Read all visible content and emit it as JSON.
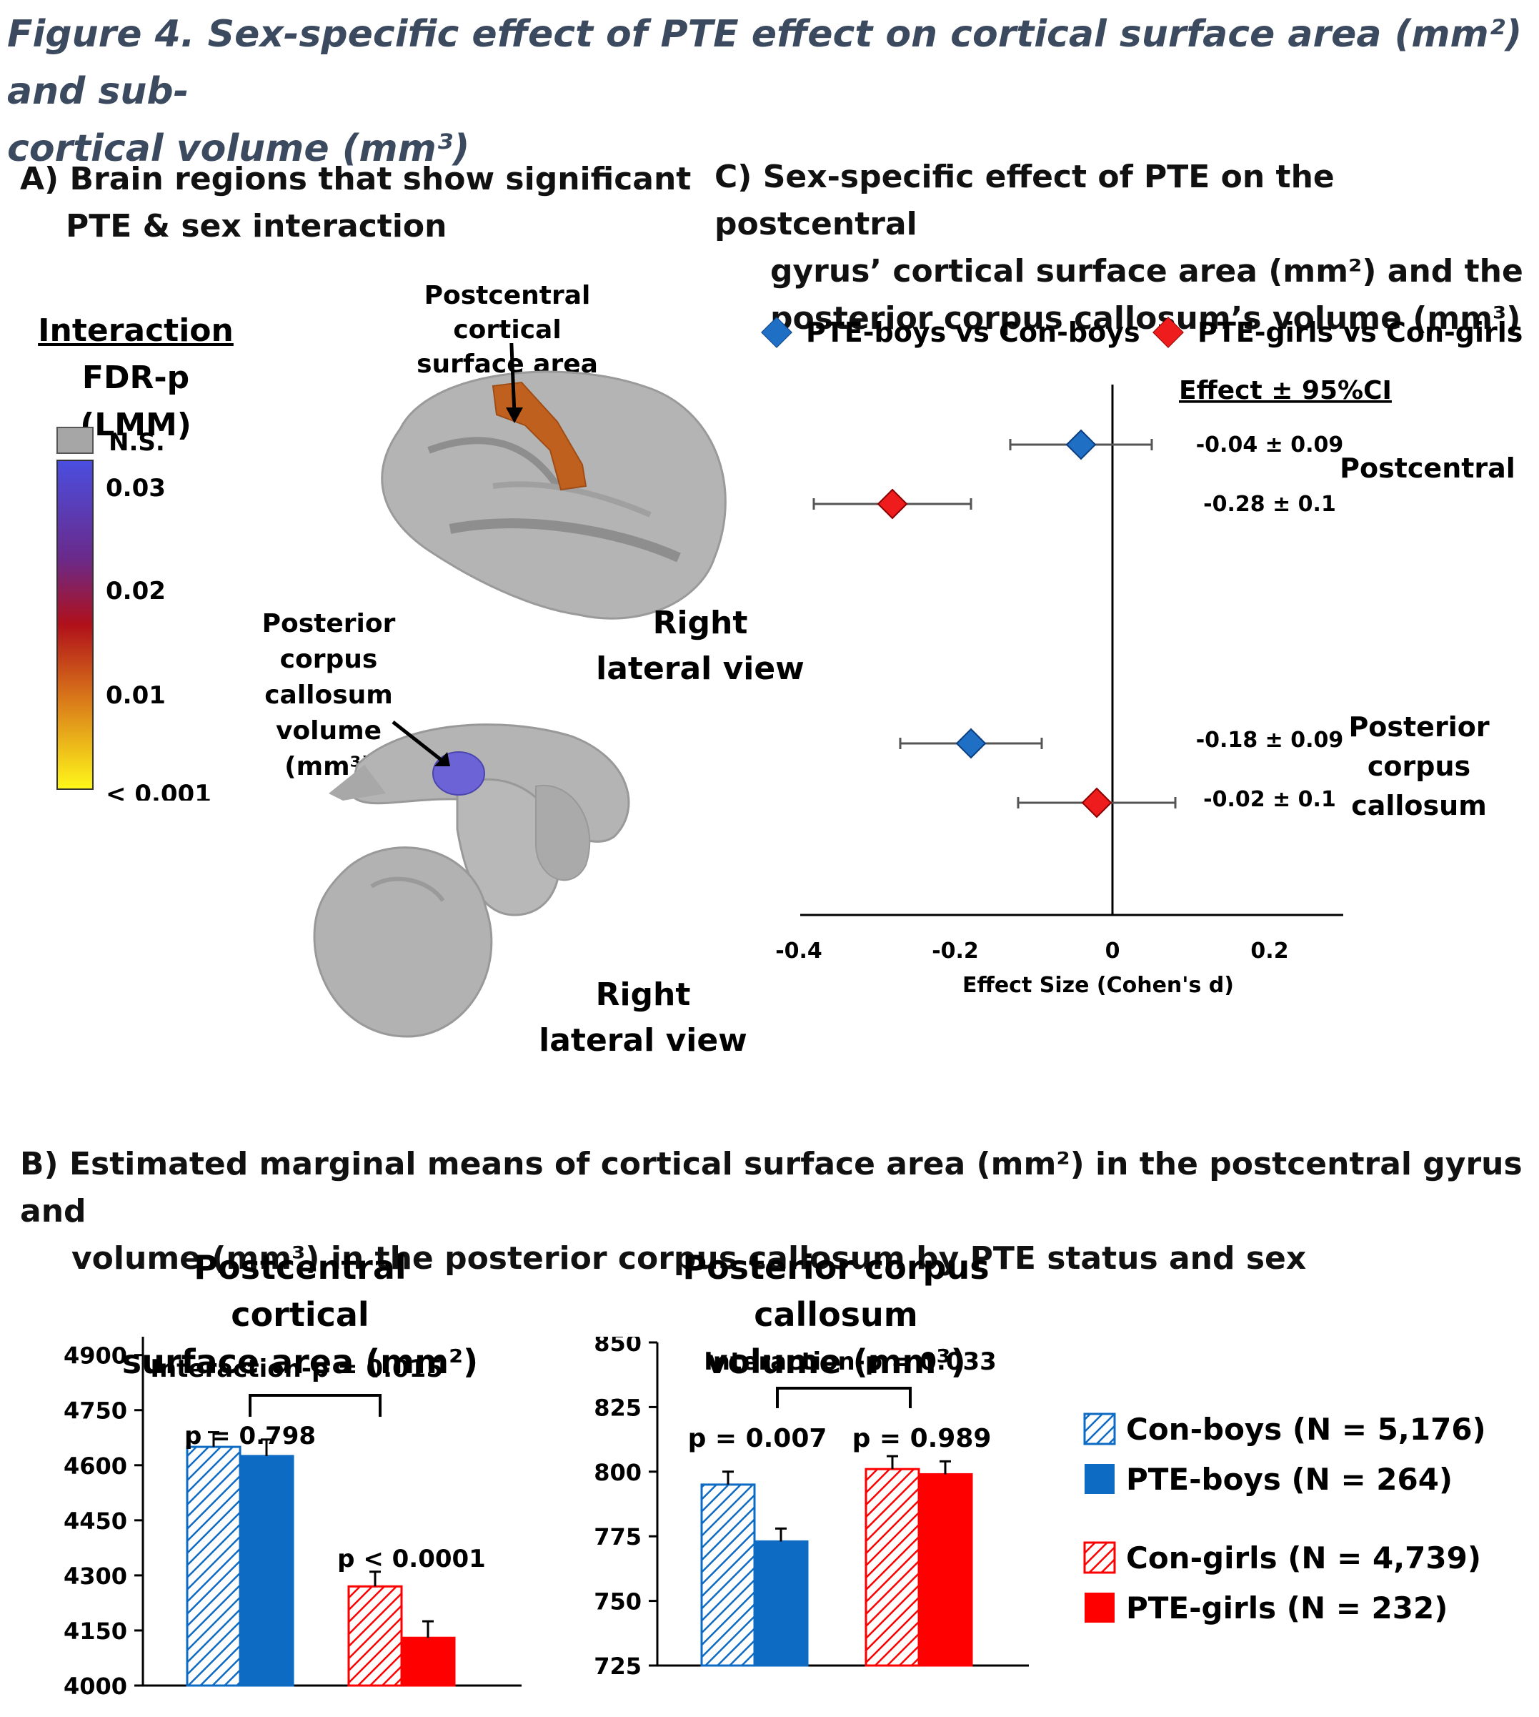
{
  "figure": {
    "title_line1": "Figure 4. Sex-specific effect of PTE effect on cortical surface area (mm²) and sub-",
    "title_line2": "cortical volume (mm³)"
  },
  "panelA": {
    "title_line1": "A) Brain regions that show significant",
    "title_line2": "PTE & sex interaction",
    "colorbar": {
      "title_line1": "Interaction",
      "title_line2": "FDR-p (LMM)",
      "ns_label": "N.S.",
      "ticks": [
        "0.03",
        "0.02",
        "0.01",
        "< 0.001"
      ]
    },
    "cortex_label_line1": "Postcentral  cortical",
    "cortex_label_line2": "surface area (mm²)",
    "callosum_label_line1": "Posterior",
    "callosum_label_line2": "corpus callosum",
    "callosum_label_line3": "volume",
    "callosum_label_line4": "(mm³)",
    "view1_line1": "Right",
    "view1_line2": "lateral view",
    "view2_line1": "Right",
    "view2_line2": "lateral view",
    "colors": {
      "ns": "#a6a6a6",
      "cortex_region": "#c0601e",
      "callosum_region": "#6b63d6",
      "brain": "#b4b4b4"
    }
  },
  "panelC": {
    "title_line1": "C) Sex-specific effect of PTE on the postcentral",
    "title_line2": "gyrus’ cortical surface area (mm²) and the",
    "title_line3": "posterior corpus callosum’s volume (mm³)",
    "legend_boys": "PTE-boys vs Con-boys",
    "legend_girls": "PTE-girls vs Con-girls",
    "effect_header": "Effect ± 95%CI",
    "region1": "Postcentral",
    "region2_line1": "Posterior",
    "region2_line2": "corpus",
    "region2_line3": "callosum",
    "xlabel": "Effect Size (Cohen's d)",
    "xticks": [
      "-0.4",
      "-0.2",
      "0",
      "0.2"
    ],
    "labels": [
      "-0.04 ± 0.09",
      "-0.28 ± 0.1",
      "-0.18 ± 0.09",
      "-0.02 ± 0.1"
    ],
    "colors": {
      "boys": "#1f6fc5",
      "girls": "#ee1c1c"
    }
  },
  "panelB": {
    "title_line1": "B)  Estimated marginal means of cortical surface area (mm²) in the postcentral gyrus and",
    "title_line2": "volume (mm³) in the posterior corpus callosum  by PTE status and sex",
    "chart1_title_line1": "Postcentral  cortical",
    "chart1_title_line2": "surface area (mm²)",
    "chart1_interaction": "Interaction-p = 0.015",
    "chart1_p_boys": "p = 0.798",
    "chart1_p_girls": "p < 0.0001",
    "chart1_yticks": [
      "4900",
      "4750",
      "4600",
      "4450",
      "4300",
      "4150",
      "4000"
    ],
    "chart2_title_line1": "Posterior corpus callosum",
    "chart2_title_line2": "volume (mm³)",
    "chart2_interaction": "Interaction-p = 0.033",
    "chart2_p_boys": "p = 0.007",
    "chart2_p_girls": "p = 0.989",
    "chart2_yticks": [
      "850",
      "825",
      "800",
      "775",
      "750",
      "725"
    ],
    "legend": [
      "Con-boys (N = 5,176)",
      "PTE-boys (N = 264)",
      "Con-girls (N = 4,739)",
      "PTE-girls (N = 232)"
    ],
    "colors": {
      "boys": "#0e6bc4",
      "girls": "#ff0000"
    }
  },
  "chart_data": [
    {
      "type": "scatter",
      "title": "Sex-specific effect of PTE on the postcentral gyrus’ cortical surface area (mm²) and the posterior corpus callosum’s volume (mm³)",
      "xlabel": "Effect Size (Cohen's d)",
      "xlim": [
        -0.4,
        0.3
      ],
      "series": [
        {
          "name": "PTE-boys vs Con-boys",
          "categories": [
            "Postcentral",
            "Posterior corpus callosum"
          ],
          "values": [
            -0.04,
            -0.18
          ],
          "ci": [
            0.09,
            0.09
          ]
        },
        {
          "name": "PTE-girls vs Con-girls",
          "categories": [
            "Postcentral",
            "Posterior corpus callosum"
          ],
          "values": [
            -0.28,
            -0.02
          ],
          "ci": [
            0.1,
            0.1
          ]
        }
      ]
    },
    {
      "type": "bar",
      "title": "Postcentral  cortical surface area (mm²)",
      "categories": [
        "Boys",
        "Girls"
      ],
      "ylim": [
        4000,
        4950
      ],
      "series": [
        {
          "name": "Con",
          "values": [
            4650,
            4270
          ],
          "err": [
            40,
            40
          ]
        },
        {
          "name": "PTE",
          "values": [
            4625,
            4130
          ],
          "err": [
            45,
            45
          ]
        }
      ]
    },
    {
      "type": "bar",
      "title": "Posterior corpus callosum volume (mm³)",
      "categories": [
        "Boys",
        "Girls"
      ],
      "ylim": [
        725,
        850
      ],
      "series": [
        {
          "name": "Con",
          "values": [
            795,
            801
          ],
          "err": [
            5,
            5
          ]
        },
        {
          "name": "PTE",
          "values": [
            773,
            799
          ],
          "err": [
            5,
            5
          ]
        }
      ]
    }
  ]
}
